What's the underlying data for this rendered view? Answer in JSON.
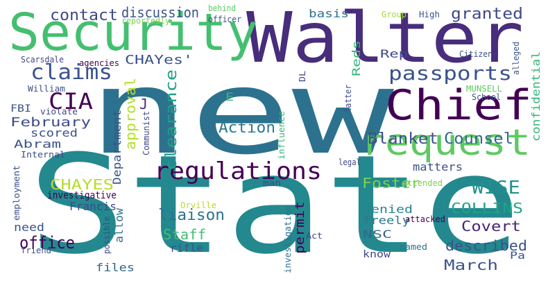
{
  "words": [
    {
      "text": "State",
      "color": "#23898e"
    },
    {
      "text": "new",
      "color": "#2c728e"
    },
    {
      "text": "Walter",
      "color": "#472d7b"
    },
    {
      "text": "Security",
      "color": "#44bf70"
    },
    {
      "text": "Chief",
      "color": "#440154"
    },
    {
      "text": "request",
      "color": "#5ec962"
    },
    {
      "text": "regulations",
      "color": "#440154"
    },
    {
      "text": "passports",
      "color": "#3b528b"
    },
    {
      "text": "claims",
      "color": "#3b528b"
    },
    {
      "text": "CIA",
      "color": "#440154"
    },
    {
      "text": "Blanket",
      "color": "#3b528b"
    },
    {
      "text": "Counsel",
      "color": "#31688e"
    },
    {
      "text": "granted",
      "color": "#3e4989"
    },
    {
      "text": "contact",
      "color": "#3e4989"
    },
    {
      "text": "discussion",
      "color": "#3b528b"
    },
    {
      "text": "basis",
      "color": "#2c728e"
    },
    {
      "text": "WISE",
      "color": "#21918c"
    },
    {
      "text": "Action",
      "color": "#2a788e"
    },
    {
      "text": "February",
      "color": "#3e4989"
    },
    {
      "text": "approval",
      "color": "#b5de2b"
    },
    {
      "text": "clearance",
      "color": "#1fa187"
    },
    {
      "text": "CHAYes'",
      "color": "#3b528b"
    },
    {
      "text": "Rep",
      "color": "#3e4989"
    },
    {
      "text": "Reds",
      "color": "#35b779"
    },
    {
      "text": "Foster",
      "color": "#7ad151"
    },
    {
      "text": "matters",
      "color": "#3b528b"
    },
    {
      "text": "CHAYES",
      "color": "#b5de2b"
    },
    {
      "text": "COLLINS",
      "color": "#20a486"
    },
    {
      "text": "liaison",
      "color": "#2c728e"
    },
    {
      "text": "Staff",
      "color": "#44bf70"
    },
    {
      "text": "office",
      "color": "#440154"
    },
    {
      "text": "March",
      "color": "#3b528b"
    },
    {
      "text": "described",
      "color": "#3b528b"
    },
    {
      "text": "Covert",
      "color": "#482475"
    },
    {
      "text": "Abram",
      "color": "#3b528b"
    },
    {
      "text": "Department",
      "color": "#3b528b"
    },
    {
      "text": "permit",
      "color": "#440154"
    },
    {
      "text": "confidential",
      "color": "#35b779"
    },
    {
      "text": "denied",
      "color": "#25858e"
    },
    {
      "text": "freely",
      "color": "#2a788e"
    },
    {
      "text": "NSC",
      "color": "#31688e"
    },
    {
      "text": "know",
      "color": "#3e4989"
    },
    {
      "text": "Francis",
      "color": "#3e4989"
    },
    {
      "text": "rifle",
      "color": "#3b528b"
    },
    {
      "text": "allow",
      "color": "#2c728e"
    },
    {
      "text": "files",
      "color": "#31688e"
    },
    {
      "text": "need",
      "color": "#3b528b"
    },
    {
      "text": "scored",
      "color": "#3b528b"
    },
    {
      "text": "FBI",
      "color": "#3b528b"
    },
    {
      "text": "J",
      "color": "#482878"
    },
    {
      "text": "E",
      "color": "#35b779"
    },
    {
      "text": "Pa",
      "color": "#3b528b"
    },
    {
      "text": "Scarsdale",
      "color": "#3e4989"
    },
    {
      "text": "agencies",
      "color": "#440154"
    },
    {
      "text": "William",
      "color": "#3b528b"
    },
    {
      "text": "violate",
      "color": "#3e4989"
    },
    {
      "text": "Internal",
      "color": "#3e4989"
    },
    {
      "text": "employment",
      "color": "#3b528b"
    },
    {
      "text": "investigative",
      "color": "#440154"
    },
    {
      "text": "friend",
      "color": "#3b528b"
    },
    {
      "text": "possible",
      "color": "#3e4989"
    },
    {
      "text": "Communist",
      "color": "#3e4989"
    },
    {
      "text": "influence",
      "color": "#35b779"
    },
    {
      "text": "investigation",
      "color": "#2c728e"
    },
    {
      "text": "Act",
      "color": "#3e4989"
    },
    {
      "text": "named",
      "color": "#2c728e"
    },
    {
      "text": "attacked",
      "color": "#440154"
    },
    {
      "text": "attended",
      "color": "#7ad151"
    },
    {
      "text": "Orville",
      "color": "#b5de2b"
    },
    {
      "text": "man",
      "color": "#3e4989"
    },
    {
      "text": "legal",
      "color": "#3e4989"
    },
    {
      "text": "latter",
      "color": "#3e4989"
    },
    {
      "text": "MUNSELL",
      "color": "#5ec962"
    },
    {
      "text": "School",
      "color": "#3b528b"
    },
    {
      "text": "DL",
      "color": "#3e4989"
    },
    {
      "text": "behind",
      "color": "#5ec962"
    },
    {
      "text": "officer",
      "color": "#3b528b"
    },
    {
      "text": "reportedly",
      "color": "#7ad151"
    },
    {
      "text": "Group",
      "color": "#a0da39"
    },
    {
      "text": "High",
      "color": "#3b528b"
    },
    {
      "text": "Citizen",
      "color": "#3b528b"
    },
    {
      "text": "alleged",
      "color": "#3b528b"
    }
  ]
}
